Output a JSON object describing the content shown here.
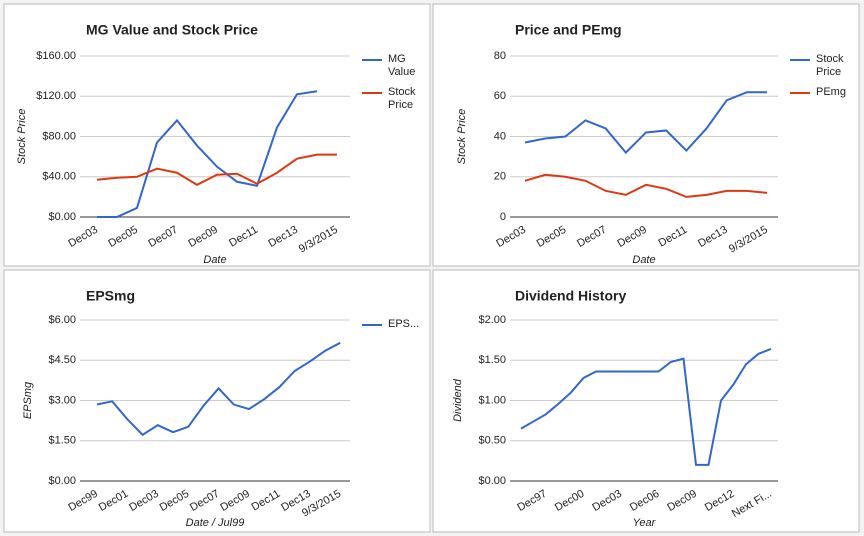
{
  "chart_data": [
    {
      "type": "line",
      "title": "MG Value and Stock Price",
      "y_label": "Stock Price",
      "x_label": "Date",
      "categories": [
        "Dec03",
        null,
        "Dec05",
        null,
        "Dec07",
        null,
        "Dec09",
        null,
        "Dec11",
        null,
        "Dec13",
        null,
        "9/3/2015"
      ],
      "series": [
        {
          "name": "MG Value",
          "color": "#3366cc",
          "values": [
            0,
            0,
            9,
            74,
            96,
            71,
            50,
            35,
            31,
            89,
            122,
            125,
            null
          ]
        },
        {
          "name": "Stock Price",
          "color": "#dc3912",
          "values": [
            37,
            39,
            40,
            48,
            44,
            32,
            42,
            43,
            33,
            44,
            58,
            62,
            62
          ]
        }
      ],
      "ylim": [
        0,
        160
      ],
      "yticks": [
        {
          "value": 0,
          "label": "$0.00"
        },
        {
          "value": 40,
          "label": "$40.00"
        },
        {
          "value": 80,
          "label": "$80.00"
        },
        {
          "value": 120,
          "label": "$120.00"
        },
        {
          "value": 160,
          "label": "$160.00"
        }
      ],
      "grid": true,
      "legend": "right"
    },
    {
      "type": "line",
      "title": "Price and PEmg",
      "y_label": "Stock Price",
      "x_label": "Date",
      "categories": [
        "Dec03",
        null,
        "Dec05",
        null,
        "Dec07",
        null,
        "Dec09",
        null,
        "Dec11",
        null,
        "Dec13",
        null,
        "9/3/2015"
      ],
      "series": [
        {
          "name": "Stock Price",
          "color": "#3366cc",
          "values": [
            37,
            39,
            40,
            48,
            44,
            32,
            42,
            43,
            33,
            44,
            58,
            62,
            62
          ]
        },
        {
          "name": "PEmg",
          "color": "#dc3912",
          "values": [
            18,
            21,
            20,
            18,
            13,
            11,
            16,
            14,
            10,
            11,
            13,
            13,
            12
          ]
        }
      ],
      "ylim": [
        0,
        80
      ],
      "yticks": [
        0,
        20,
        40,
        60,
        80
      ],
      "grid": true,
      "legend": "right"
    },
    {
      "type": "line",
      "title": "EPSmg",
      "y_label": "EPSmg",
      "x_label": "Date / Jul99",
      "categories": [
        "Dec99",
        null,
        "Dec01",
        null,
        "Dec03",
        null,
        "Dec05",
        null,
        "Dec07",
        null,
        "Dec09",
        null,
        "Dec11",
        null,
        "Dec13",
        null,
        "9/3/2015"
      ],
      "series": [
        {
          "name": "EPS...",
          "color": "#3366cc",
          "values": [
            2.85,
            2.97,
            2.3,
            1.72,
            2.08,
            1.82,
            2.02,
            2.8,
            3.45,
            2.85,
            2.68,
            3.05,
            3.5,
            4.1,
            4.45,
            4.85,
            5.15
          ]
        }
      ],
      "ylim": [
        0,
        6
      ],
      "yticks": [
        {
          "value": 0,
          "label": "$0.00"
        },
        {
          "value": 1.5,
          "label": "$1.50"
        },
        {
          "value": 3,
          "label": "$3.00"
        },
        {
          "value": 4.5,
          "label": "$4.50"
        },
        {
          "value": 6,
          "label": "$6.00"
        }
      ],
      "grid": true,
      "legend": "right"
    },
    {
      "type": "line",
      "title": "Dividend History",
      "y_label": "Dividend",
      "x_label": "Year",
      "categories": [
        null,
        null,
        "Dec97",
        null,
        null,
        "Dec00",
        null,
        null,
        "Dec03",
        null,
        null,
        "Dec06",
        null,
        null,
        "Dec09",
        null,
        null,
        "Dec12",
        null,
        null,
        "Next Fi..."
      ],
      "series": [
        {
          "color": "#3366cc",
          "values": [
            0.65,
            0.74,
            0.83,
            0.96,
            1.1,
            1.28,
            1.36,
            1.36,
            1.36,
            1.36,
            1.36,
            1.36,
            1.48,
            1.52,
            0.2,
            0.2,
            1.0,
            1.2,
            1.45,
            1.58,
            1.64
          ]
        }
      ],
      "ylim": [
        0,
        2
      ],
      "yticks": [
        {
          "value": 0,
          "label": "$0.00"
        },
        {
          "value": 0.5,
          "label": "$0.50"
        },
        {
          "value": 1,
          "label": "$1.00"
        },
        {
          "value": 1.5,
          "label": "$1.50"
        },
        {
          "value": 2,
          "label": "$2.00"
        }
      ],
      "grid": true
    }
  ]
}
